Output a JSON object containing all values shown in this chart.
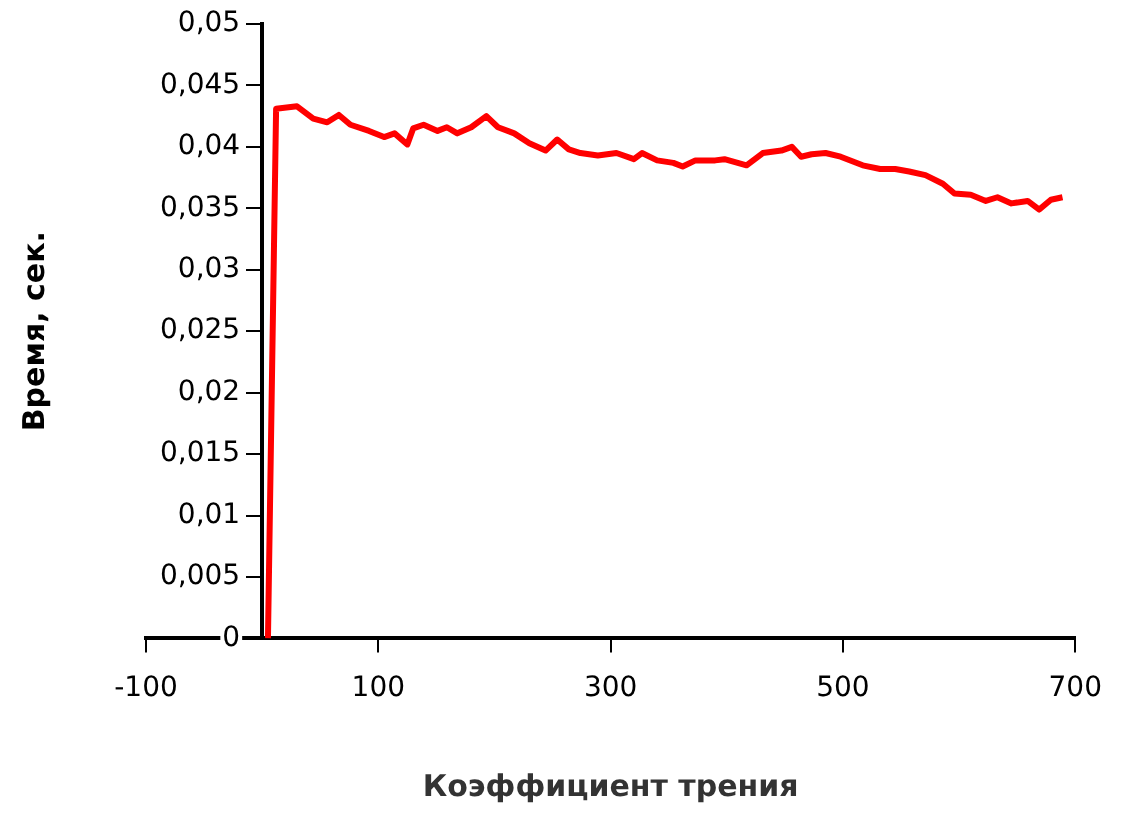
{
  "chart_data": {
    "type": "line",
    "xlabel": "Коэффициент трения",
    "ylabel": "Время, сек.",
    "x": [
      5,
      12,
      30,
      44,
      56,
      66,
      76,
      92,
      105,
      114,
      125,
      130,
      139,
      151,
      159,
      168,
      180,
      193,
      203,
      217,
      230,
      244,
      254,
      264,
      274,
      289,
      305,
      320,
      327,
      340,
      354,
      362,
      373,
      390,
      398,
      417,
      431,
      447,
      456,
      464,
      473,
      485,
      498,
      517,
      532,
      545,
      557,
      571,
      586,
      596,
      610,
      623,
      633,
      645,
      659,
      669,
      679,
      689
    ],
    "series": [
      {
        "color": "#ff0000",
        "values": [
          0,
          0.0431,
          0.0433,
          0.0423,
          0.042,
          0.0426,
          0.0418,
          0.0413,
          0.0408,
          0.0411,
          0.0402,
          0.0415,
          0.0418,
          0.0413,
          0.0416,
          0.0411,
          0.0416,
          0.0425,
          0.0416,
          0.0411,
          0.0403,
          0.0397,
          0.0406,
          0.0398,
          0.0395,
          0.0393,
          0.0395,
          0.039,
          0.0395,
          0.0389,
          0.0387,
          0.0384,
          0.0389,
          0.0389,
          0.039,
          0.0385,
          0.0395,
          0.0397,
          0.04,
          0.0392,
          0.0394,
          0.0395,
          0.0392,
          0.0385,
          0.0382,
          0.0382,
          0.038,
          0.0377,
          0.037,
          0.0362,
          0.0361,
          0.0356,
          0.0359,
          0.0354,
          0.0356,
          0.0349,
          0.0357,
          0.0359
        ]
      }
    ],
    "xlim": [
      -100,
      700
    ],
    "xticks": [
      -100,
      100,
      300,
      500,
      700
    ],
    "ylim": [
      0,
      0.05
    ],
    "yticks": [
      {
        "value": 0,
        "label": "0"
      },
      {
        "value": 0.005,
        "label": "0,005"
      },
      {
        "value": 0.01,
        "label": "0,01"
      },
      {
        "value": 0.015,
        "label": "0,015"
      },
      {
        "value": 0.02,
        "label": "0,02"
      },
      {
        "value": 0.025,
        "label": "0,025"
      },
      {
        "value": 0.03,
        "label": "0,03"
      },
      {
        "value": 0.035,
        "label": "0,035"
      },
      {
        "value": 0.04,
        "label": "0,04"
      },
      {
        "value": 0.045,
        "label": "0,045"
      },
      {
        "value": 0.05,
        "label": "0,05"
      }
    ],
    "grid": false,
    "legend": false,
    "marker": "none",
    "line_style": "solid"
  }
}
